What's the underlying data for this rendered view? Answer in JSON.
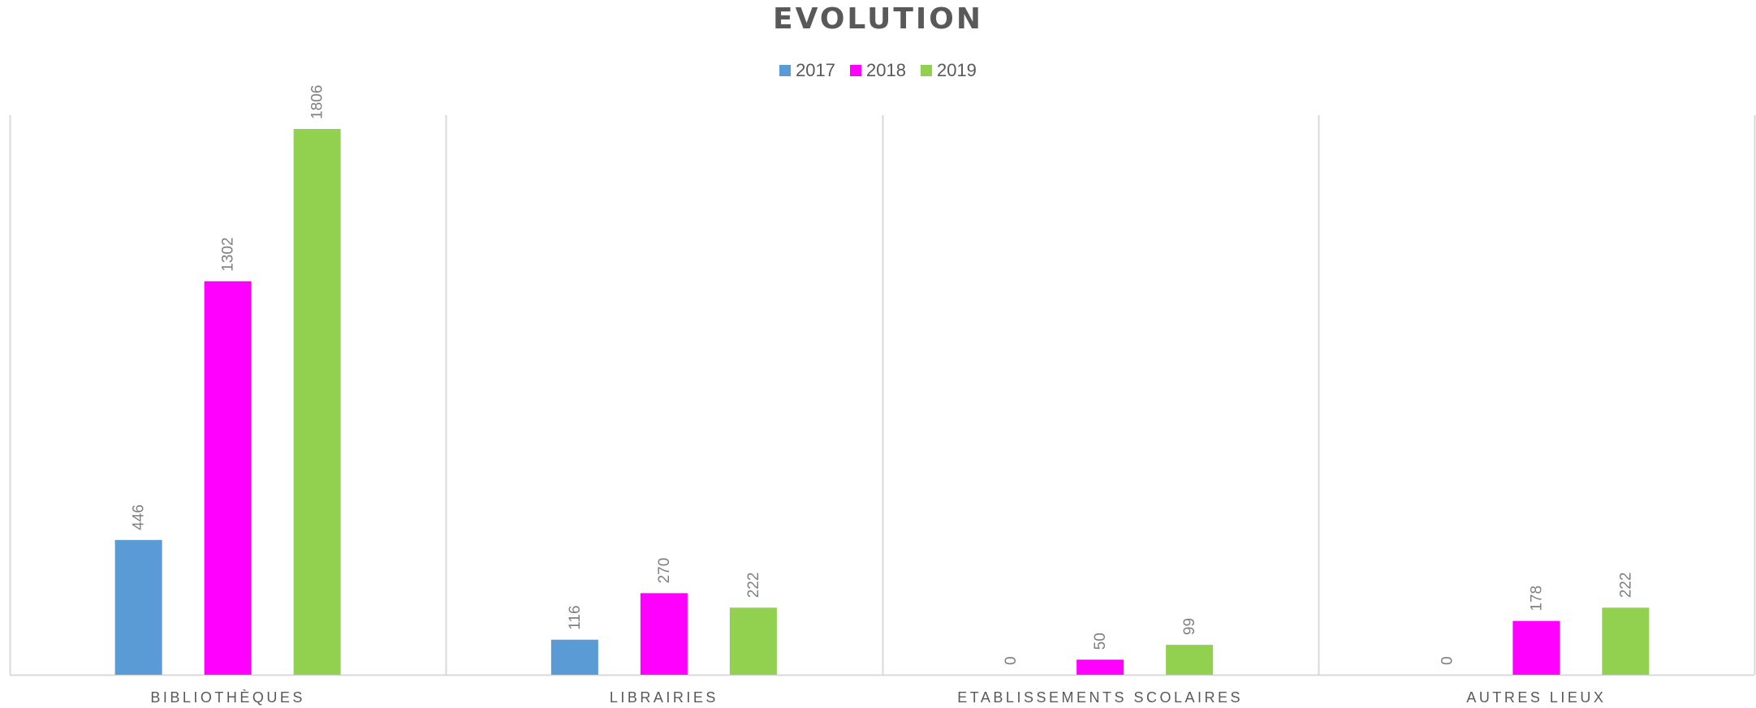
{
  "chart_data": {
    "type": "bar",
    "title": "EVOLUTION",
    "categories": [
      "BIBLIOTHÈQUES",
      "LIBRAIRIES",
      "ETABLISSEMENTS SCOLAIRES",
      "AUTRES LIEUX"
    ],
    "series": [
      {
        "name": "2017",
        "color": "#5B9BD5",
        "values": [
          446,
          116,
          0,
          0
        ]
      },
      {
        "name": "2018",
        "color": "#FF00FF",
        "values": [
          1302,
          270,
          50,
          178
        ]
      },
      {
        "name": "2019",
        "color": "#92D050",
        "values": [
          1806,
          222,
          99,
          222
        ]
      }
    ],
    "ylim": [
      0,
      1806
    ],
    "legend_position": "top-center",
    "grid": false,
    "category_separators": true,
    "data_labels": "rotated-vertical"
  }
}
